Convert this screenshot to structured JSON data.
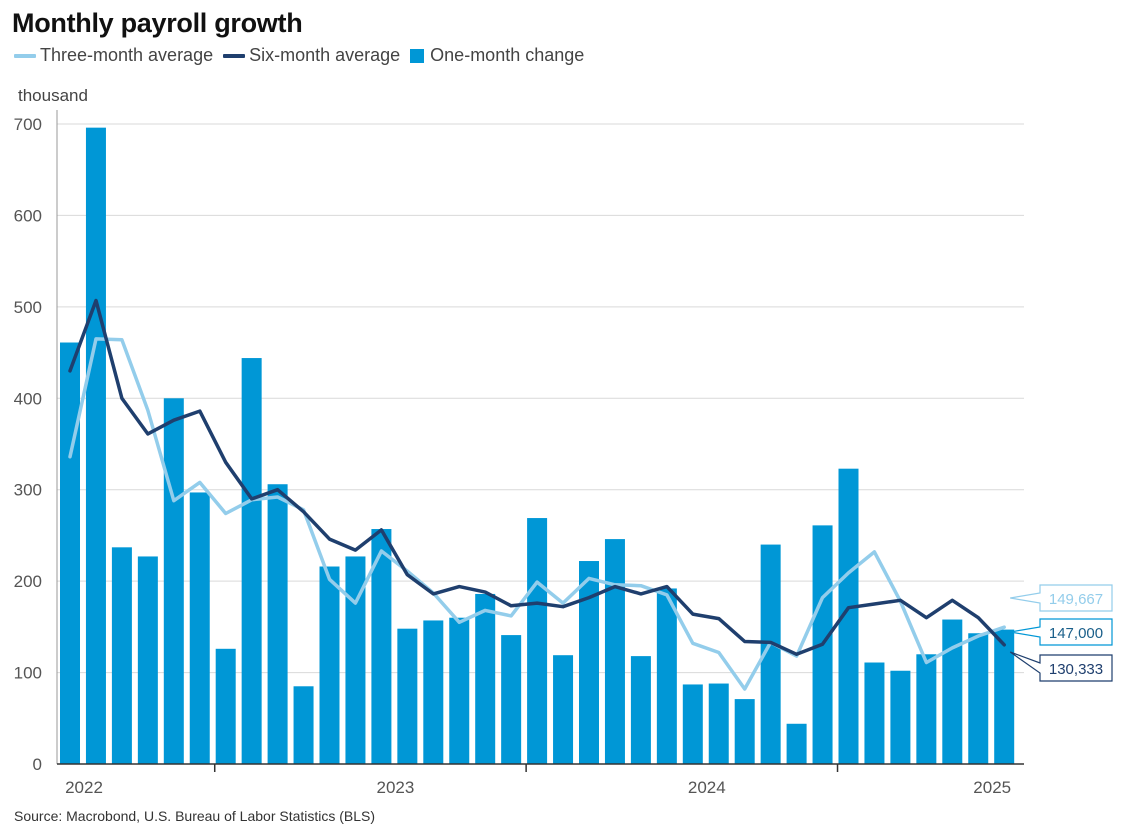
{
  "title": "Monthly payroll growth",
  "legend": {
    "three_month": "Three-month average",
    "six_month": "Six-month average",
    "one_month": "One-month change"
  },
  "unit_label": "thousand",
  "source": "Source: Macrobond, U.S. Bureau of Labor Statistics (BLS)",
  "colors": {
    "bars": "#0097d6",
    "three_month": "#93cdeb",
    "six_month": "#1f3f6e",
    "grid": "#d9d9d9",
    "axis": "#333333"
  },
  "end_labels": {
    "three_month": "149,667",
    "one_month": "147,000",
    "six_month": "130,333"
  },
  "chart_data": {
    "type": "bar",
    "title": "Monthly payroll growth",
    "ylabel": "thousand",
    "ylim": [
      0,
      700
    ],
    "yticks": [
      0,
      100,
      200,
      300,
      400,
      500,
      600,
      700
    ],
    "grid": true,
    "legend_position": "top-left",
    "x_tick_labels": [
      "2022",
      "2023",
      "2024",
      "2025"
    ],
    "categories": [
      "2022-01",
      "2022-02",
      "2022-03",
      "2022-04",
      "2022-05",
      "2022-06",
      "2022-07",
      "2022-08",
      "2022-09",
      "2022-10",
      "2022-11",
      "2022-12",
      "2023-01",
      "2023-02",
      "2023-03",
      "2023-04",
      "2023-05",
      "2023-06",
      "2023-07",
      "2023-08",
      "2023-09",
      "2023-10",
      "2023-11",
      "2023-12",
      "2024-01",
      "2024-02",
      "2024-03",
      "2024-04",
      "2024-05",
      "2024-06",
      "2024-07",
      "2024-08",
      "2024-09",
      "2024-10",
      "2024-11",
      "2024-12",
      "2025-01"
    ],
    "series": [
      {
        "name": "One-month change",
        "kind": "bar",
        "values": [
          461,
          696,
          237,
          227,
          400,
          297,
          126,
          444,
          306,
          85,
          216,
          227,
          257,
          148,
          157,
          160,
          186,
          141,
          269,
          119,
          222,
          246,
          118,
          192,
          87,
          88,
          71,
          240,
          44,
          261,
          323,
          111,
          102,
          120,
          158,
          143,
          147
        ]
      },
      {
        "name": "Three-month average",
        "kind": "line",
        "values": [
          336,
          465,
          464,
          387,
          288,
          308,
          274,
          289,
          292,
          278,
          202,
          176,
          233,
          211,
          187,
          155,
          168,
          162,
          199,
          176,
          203,
          196,
          195,
          185,
          132,
          122,
          82,
          133,
          118,
          182,
          209,
          232,
          178,
          111,
          127,
          140,
          149.667
        ]
      },
      {
        "name": "Six-month average",
        "kind": "line",
        "values": [
          430,
          507,
          400,
          361,
          376,
          386,
          330,
          290,
          300,
          276,
          246,
          234,
          256,
          207,
          186,
          194,
          188,
          173,
          176,
          172,
          182,
          194,
          186,
          194,
          164,
          159,
          134,
          133,
          120,
          131,
          171,
          175,
          179,
          160,
          179,
          160,
          130.333
        ]
      }
    ]
  }
}
